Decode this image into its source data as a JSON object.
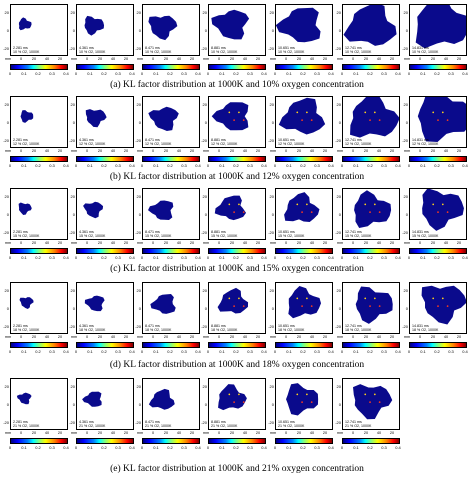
{
  "figure": {
    "captions": [
      "(a) KL factor distribution at 1000K and 10% oxygen concentration",
      "(b) KL factor distribution at 1000K and 12% oxygen concentration",
      "(c) KL factor distribution at 1000K and 15% oxygen concentration",
      "(d) KL factor distribution at 1000K and 18% oxygen concentration",
      "(e) KL factor distribution at 1000K and 21% oxygen concentration"
    ],
    "times": [
      "2.281 ms",
      "4.361 ms",
      "8.471 ms",
      "8.881 ms",
      "10.651 ms",
      "12.741 ms",
      "14.831 ms"
    ],
    "conditions": [
      "10 % O2, 1000K",
      "12 % O2, 1000K",
      "15 % O2, 1000K",
      "18 % O2, 1000K",
      "21 % O2, 1000K"
    ],
    "y_ticks": [
      "20",
      "0",
      "-20"
    ],
    "x_ticks": [
      "0",
      "20",
      "40",
      "20"
    ],
    "x_unit": "mm",
    "colorbar_ticks_a": [
      "mm",
      "0",
      "0.1",
      "0.2",
      "0.3",
      "0"
    ],
    "colorbar_ticks": [
      "0",
      "0.1",
      "0.2",
      "0.3",
      "0.4"
    ]
  }
}
